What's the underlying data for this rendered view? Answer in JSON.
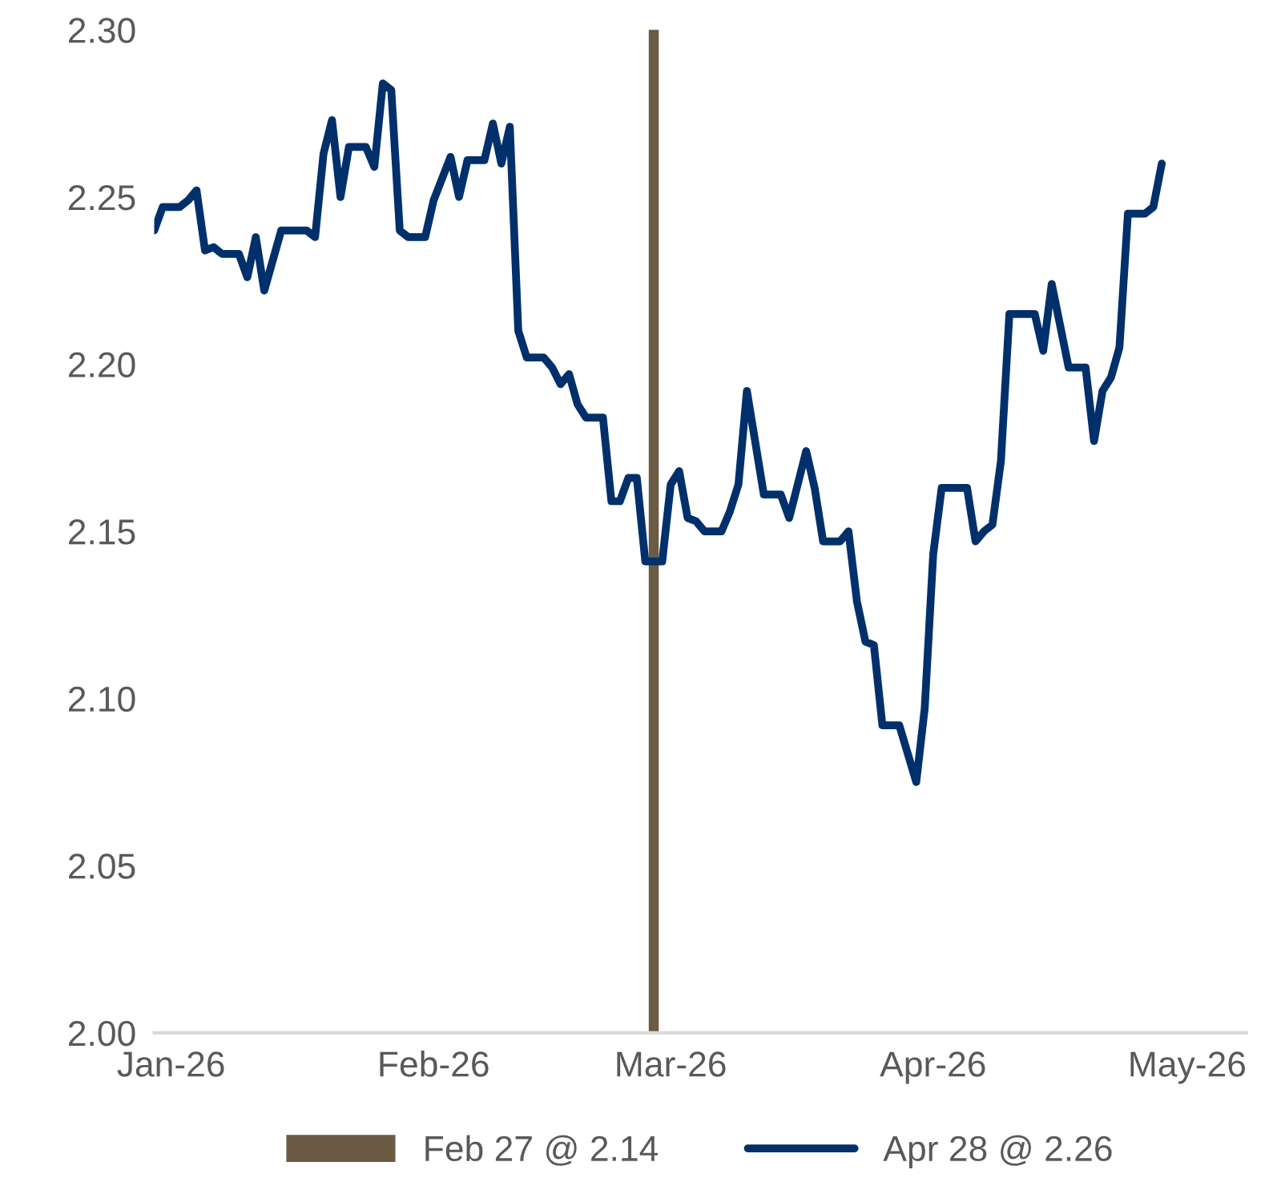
{
  "chart_data": {
    "type": "line",
    "x": [
      "2025-12-30",
      "2025-12-31",
      "2026-01-02",
      "2026-01-03",
      "2026-01-04",
      "2026-01-05",
      "2026-01-06",
      "2026-01-07",
      "2026-01-09",
      "2026-01-10",
      "2026-01-11",
      "2026-01-12",
      "2026-01-14",
      "2026-01-17",
      "2026-01-18",
      "2026-01-19",
      "2026-01-20",
      "2026-01-21",
      "2026-01-22",
      "2026-01-24",
      "2026-01-25",
      "2026-01-26",
      "2026-01-27",
      "2026-01-28",
      "2026-01-29",
      "2026-01-31",
      "2026-02-01",
      "2026-02-03",
      "2026-02-04",
      "2026-02-05",
      "2026-02-07",
      "2026-02-08",
      "2026-02-09",
      "2026-02-10",
      "2026-02-11",
      "2026-02-12",
      "2026-02-14",
      "2026-02-15",
      "2026-02-16",
      "2026-02-17",
      "2026-02-18",
      "2026-02-19",
      "2026-02-21",
      "2026-02-22",
      "2026-02-23",
      "2026-02-24",
      "2026-02-25",
      "2026-02-26",
      "2026-02-28",
      "2026-03-01",
      "2026-03-02",
      "2026-03-03",
      "2026-03-04",
      "2026-03-05",
      "2026-03-07",
      "2026-03-08",
      "2026-03-09",
      "2026-03-10",
      "2026-03-12",
      "2026-03-14",
      "2026-03-15",
      "2026-03-17",
      "2026-03-18",
      "2026-03-19",
      "2026-03-21",
      "2026-03-22",
      "2026-03-23",
      "2026-03-24",
      "2026-03-25",
      "2026-03-26",
      "2026-03-28",
      "2026-03-30",
      "2026-03-31",
      "2026-04-01",
      "2026-04-02",
      "2026-04-05",
      "2026-04-06",
      "2026-04-07",
      "2026-04-08",
      "2026-04-09",
      "2026-04-10",
      "2026-04-13",
      "2026-04-14",
      "2026-04-15",
      "2026-04-17",
      "2026-04-19",
      "2026-04-20",
      "2026-04-21",
      "2026-04-22",
      "2026-04-23",
      "2026-04-24",
      "2026-04-26",
      "2026-04-27",
      "2026-04-28"
    ],
    "series": [
      {
        "name": "Apr 28 @ 2.26",
        "color": "#00306b",
        "values": [
          2.24,
          2.247,
          2.247,
          2.249,
          2.252,
          2.234,
          2.235,
          2.233,
          2.233,
          2.226,
          2.238,
          2.222,
          2.24,
          2.24,
          2.238,
          2.263,
          2.273,
          2.25,
          2.265,
          2.265,
          2.259,
          2.284,
          2.282,
          2.24,
          2.238,
          2.238,
          2.249,
          2.262,
          2.25,
          2.261,
          2.261,
          2.272,
          2.26,
          2.271,
          2.21,
          2.202,
          2.202,
          2.199,
          2.194,
          2.197,
          2.188,
          2.184,
          2.184,
          2.159,
          2.159,
          2.166,
          2.166,
          2.141,
          2.141,
          2.164,
          2.168,
          2.154,
          2.153,
          2.15,
          2.15,
          2.156,
          2.164,
          2.192,
          2.161,
          2.161,
          2.154,
          2.174,
          2.163,
          2.147,
          2.147,
          2.15,
          2.129,
          2.117,
          2.116,
          2.092,
          2.092,
          2.075,
          2.097,
          2.143,
          2.163,
          2.163,
          2.147,
          2.15,
          2.152,
          2.171,
          2.215,
          2.215,
          2.204,
          2.224,
          2.199,
          2.199,
          2.177,
          2.192,
          2.196,
          2.205,
          2.245,
          2.245,
          2.247,
          2.26
        ]
      }
    ],
    "ref_lines": [
      {
        "axis": "x",
        "value": "2026-02-27",
        "label": "Feb 27 @ 2.14",
        "color": "#6b5b45"
      }
    ],
    "xlim": [
      "2025-12-30",
      "2026-05-08"
    ],
    "xticks": [
      {
        "value": "2026-01-01",
        "label": "Jan-26"
      },
      {
        "value": "2026-02-01",
        "label": "Feb-26"
      },
      {
        "value": "2026-03-01",
        "label": "Mar-26"
      },
      {
        "value": "2026-04-01",
        "label": "Apr-26"
      },
      {
        "value": "2026-05-01",
        "label": "May-26"
      }
    ],
    "ylim": [
      2.0,
      2.3
    ],
    "yticks": [
      {
        "value": 2.0,
        "label": "2.00"
      },
      {
        "value": 2.05,
        "label": "2.05"
      },
      {
        "value": 2.1,
        "label": "2.10"
      },
      {
        "value": 2.15,
        "label": "2.15"
      },
      {
        "value": 2.2,
        "label": "2.20"
      },
      {
        "value": 2.25,
        "label": "2.25"
      },
      {
        "value": 2.3,
        "label": "2.30"
      }
    ],
    "grid": false,
    "legend": "bottom",
    "marker": "none",
    "line_style": "solid"
  }
}
